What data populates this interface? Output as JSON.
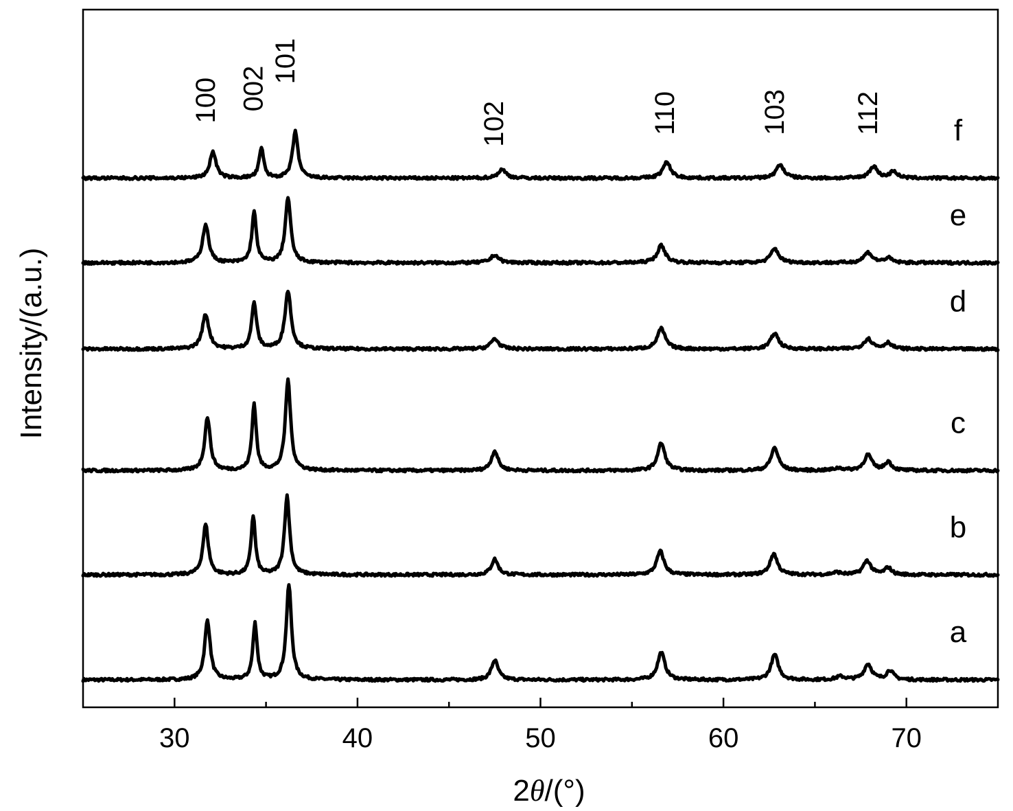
{
  "chart_data": {
    "type": "line",
    "xlabel": {
      "prefix": "2",
      "symbol": "θ",
      "suffix": "/(°)"
    },
    "ylabel": "Intensity/(a.u.)",
    "xlim": [
      25,
      75
    ],
    "x_ticks_major": [
      30,
      40,
      50,
      60,
      70
    ],
    "x_ticks_minor": [
      35,
      45,
      55,
      65
    ],
    "y_ticks": [],
    "grid": false,
    "legend": "none",
    "series": [
      {
        "name": "a",
        "baseline": 0.0,
        "peaks": [
          {
            "x": 31.8,
            "h": 0.76,
            "w": 0.18
          },
          {
            "x": 34.4,
            "h": 0.72,
            "w": 0.14
          },
          {
            "x": 36.25,
            "h": 1.21,
            "w": 0.17
          },
          {
            "x": 47.5,
            "h": 0.25,
            "w": 0.22
          },
          {
            "x": 56.6,
            "h": 0.35,
            "w": 0.24
          },
          {
            "x": 62.8,
            "h": 0.32,
            "w": 0.24
          },
          {
            "x": 66.4,
            "h": 0.04,
            "w": 0.3
          },
          {
            "x": 67.9,
            "h": 0.2,
            "w": 0.25
          },
          {
            "x": 69.1,
            "h": 0.12,
            "w": 0.22
          }
        ]
      },
      {
        "name": "b",
        "baseline": 1.34,
        "peaks": [
          {
            "x": 31.7,
            "h": 0.64,
            "w": 0.18
          },
          {
            "x": 34.3,
            "h": 0.75,
            "w": 0.14
          },
          {
            "x": 36.15,
            "h": 1.0,
            "w": 0.17
          },
          {
            "x": 47.5,
            "h": 0.2,
            "w": 0.22
          },
          {
            "x": 56.55,
            "h": 0.3,
            "w": 0.24
          },
          {
            "x": 62.75,
            "h": 0.27,
            "w": 0.24
          },
          {
            "x": 66.2,
            "h": 0.03,
            "w": 0.3
          },
          {
            "x": 67.85,
            "h": 0.18,
            "w": 0.25
          },
          {
            "x": 69.0,
            "h": 0.09,
            "w": 0.22
          }
        ]
      },
      {
        "name": "c",
        "baseline": 2.67,
        "peaks": [
          {
            "x": 31.8,
            "h": 0.68,
            "w": 0.18
          },
          {
            "x": 34.35,
            "h": 0.85,
            "w": 0.14
          },
          {
            "x": 36.2,
            "h": 1.16,
            "w": 0.17
          },
          {
            "x": 47.5,
            "h": 0.25,
            "w": 0.22
          },
          {
            "x": 56.6,
            "h": 0.35,
            "w": 0.24
          },
          {
            "x": 62.8,
            "h": 0.29,
            "w": 0.24
          },
          {
            "x": 66.3,
            "h": 0.03,
            "w": 0.3
          },
          {
            "x": 67.9,
            "h": 0.2,
            "w": 0.25
          },
          {
            "x": 69.0,
            "h": 0.11,
            "w": 0.22
          }
        ]
      },
      {
        "name": "d",
        "baseline": 4.22,
        "peaks": [
          {
            "x": 31.7,
            "h": 0.44,
            "w": 0.22
          },
          {
            "x": 34.35,
            "h": 0.59,
            "w": 0.16
          },
          {
            "x": 36.2,
            "h": 0.74,
            "w": 0.2
          },
          {
            "x": 47.5,
            "h": 0.13,
            "w": 0.26
          },
          {
            "x": 56.6,
            "h": 0.26,
            "w": 0.26
          },
          {
            "x": 62.8,
            "h": 0.2,
            "w": 0.26
          },
          {
            "x": 67.9,
            "h": 0.13,
            "w": 0.28
          },
          {
            "x": 69.0,
            "h": 0.08,
            "w": 0.24
          }
        ]
      },
      {
        "name": "e",
        "baseline": 5.32,
        "peaks": [
          {
            "x": 31.7,
            "h": 0.49,
            "w": 0.2
          },
          {
            "x": 34.35,
            "h": 0.64,
            "w": 0.15
          },
          {
            "x": 36.2,
            "h": 0.83,
            "w": 0.18
          },
          {
            "x": 47.5,
            "h": 0.1,
            "w": 0.26
          },
          {
            "x": 56.6,
            "h": 0.22,
            "w": 0.26
          },
          {
            "x": 62.8,
            "h": 0.18,
            "w": 0.26
          },
          {
            "x": 67.9,
            "h": 0.13,
            "w": 0.28
          },
          {
            "x": 69.0,
            "h": 0.06,
            "w": 0.24
          }
        ]
      },
      {
        "name": "f",
        "baseline": 6.4,
        "peaks": [
          {
            "x": 32.1,
            "h": 0.34,
            "w": 0.2
          },
          {
            "x": 34.75,
            "h": 0.38,
            "w": 0.15
          },
          {
            "x": 36.6,
            "h": 0.59,
            "w": 0.18
          },
          {
            "x": 47.9,
            "h": 0.11,
            "w": 0.26
          },
          {
            "x": 56.9,
            "h": 0.2,
            "w": 0.26
          },
          {
            "x": 63.1,
            "h": 0.17,
            "w": 0.26
          },
          {
            "x": 68.2,
            "h": 0.15,
            "w": 0.26
          },
          {
            "x": 69.3,
            "h": 0.09,
            "w": 0.22
          }
        ]
      }
    ],
    "ylim": [
      -0.35,
      8.55
    ],
    "peak_labels": [
      {
        "text": "100",
        "x": 32.2,
        "y": 7.1
      },
      {
        "text": "002",
        "x": 34.8,
        "y": 7.25
      },
      {
        "text": "101",
        "x": 36.55,
        "y": 7.6
      },
      {
        "text": "102",
        "x": 47.95,
        "y": 6.8
      },
      {
        "text": "110",
        "x": 57.3,
        "y": 6.95
      },
      {
        "text": "103",
        "x": 63.3,
        "y": 6.95
      },
      {
        "text": "112",
        "x": 68.4,
        "y": 6.95
      }
    ]
  }
}
